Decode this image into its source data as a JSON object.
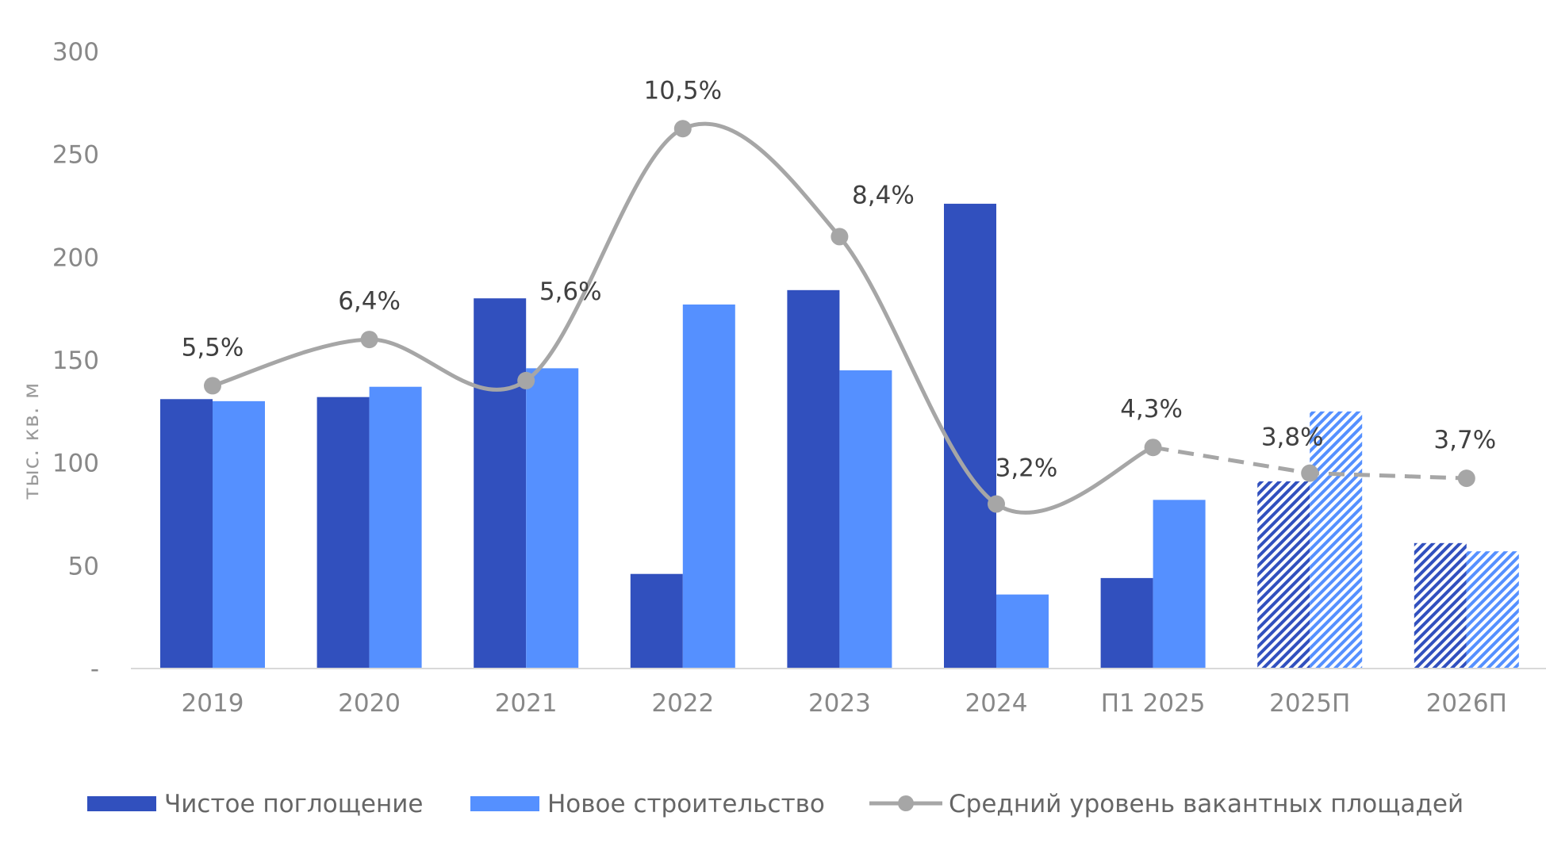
{
  "chart_data": {
    "type": "bar",
    "ylabel": "тыс. кв. м",
    "ylim": [
      0,
      300
    ],
    "yticks": [
      {
        "value": 0,
        "label": "-"
      },
      {
        "value": 50,
        "label": "50"
      },
      {
        "value": 100,
        "label": "100"
      },
      {
        "value": 150,
        "label": "150"
      },
      {
        "value": 200,
        "label": "200"
      },
      {
        "value": 250,
        "label": "250"
      },
      {
        "value": 300,
        "label": "300"
      }
    ],
    "categories": [
      "2019",
      "2020",
      "2021",
      "2022",
      "2023",
      "2024",
      "П1 2025",
      "2025П",
      "2026П"
    ],
    "forecast_categories": [
      "2025П",
      "2026П"
    ],
    "series": [
      {
        "name": "Чистое поглощение",
        "type": "bar",
        "color": "#3150BE",
        "values": [
          131,
          132,
          180,
          46,
          184,
          226,
          44,
          91,
          61
        ]
      },
      {
        "name": "Новое строительство",
        "type": "bar",
        "color": "#5590FF",
        "values": [
          130,
          137,
          146,
          177,
          145,
          36,
          82,
          125,
          57
        ]
      },
      {
        "name": "Средний уровень вакантных площадей",
        "type": "line",
        "color": "#A6A6A6",
        "values": [
          5.5,
          6.4,
          5.6,
          10.5,
          8.4,
          3.2,
          4.3,
          3.8,
          3.7
        ],
        "labels": [
          "5,5%",
          "6,4%",
          "5,6%",
          "10,5%",
          "8,4%",
          "3,2%",
          "4,3%",
          "3,8%",
          "3,7%"
        ],
        "axis_scale_per_percent": 25,
        "dashed_from_category": "П1 2025"
      }
    ],
    "legend_position": "bottom",
    "grid": false
  }
}
